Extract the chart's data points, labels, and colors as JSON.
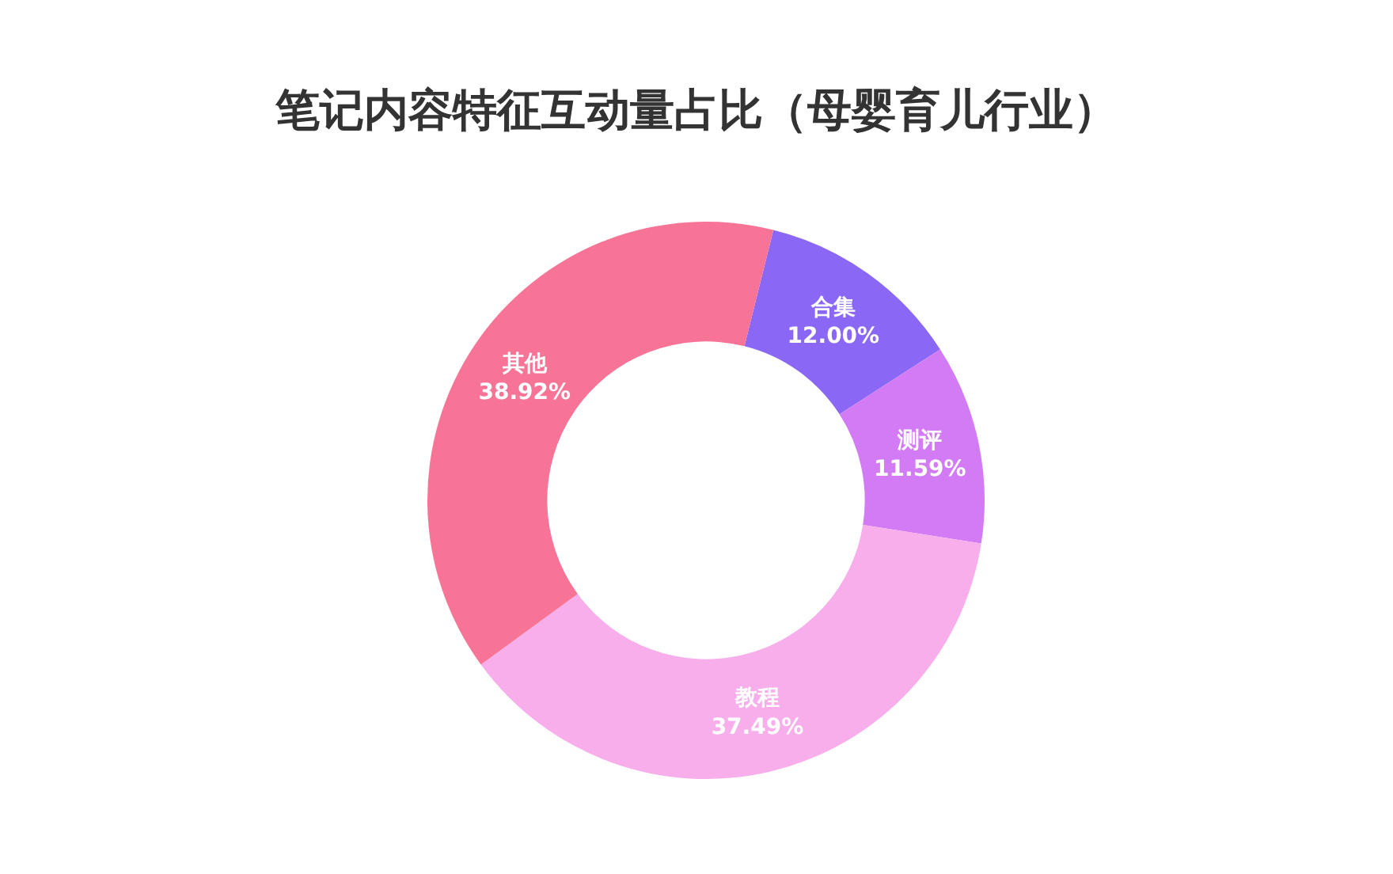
{
  "chart_data": {
    "type": "donut",
    "title": "笔记内容特征互动量占比（母婴育儿行业）",
    "categories": [
      "合集",
      "测评",
      "教程",
      "其他"
    ],
    "values": [
      12.0,
      11.59,
      37.49,
      38.92
    ],
    "value_labels": [
      "12.00%",
      "11.59%",
      "37.49%",
      "38.92%"
    ],
    "colors": [
      "#8a67f5",
      "#d27bf5",
      "#f8aeea",
      "#f77497"
    ],
    "legend": false
  }
}
